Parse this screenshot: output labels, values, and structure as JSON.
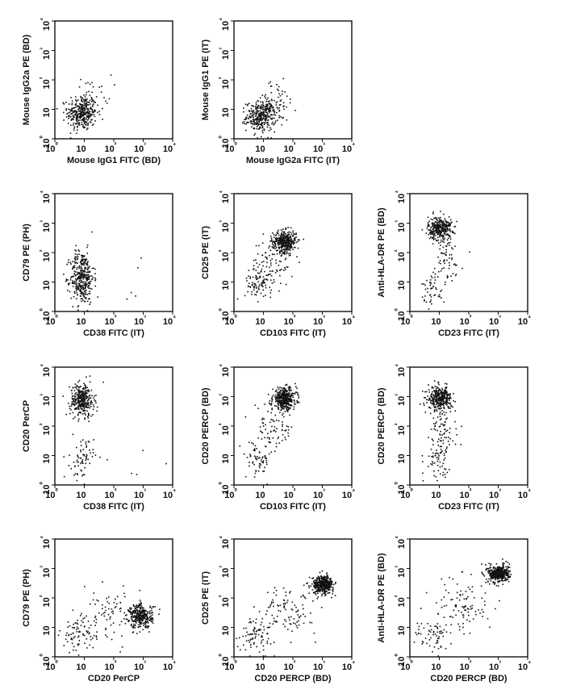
{
  "chart_data": [
    {
      "type": "scatter",
      "xlabel": "Mouse IgG1 FITC (BD)",
      "ylabel": "Mouse IgG2a PE (BD)",
      "x_scale": "log",
      "y_scale": "log",
      "xlim": [
        1,
        10000
      ],
      "ylim": [
        1,
        10000
      ],
      "x_ticks": [
        "10⁰",
        "10",
        "10²",
        "10³",
        "10⁴"
      ],
      "y_ticks": [
        "10⁰",
        "10",
        "10²",
        "10³",
        "10⁴"
      ],
      "clusters": [
        {
          "x_center": 8,
          "y_center": 8,
          "x_spread": 0.25,
          "y_spread": 0.3,
          "count": 340
        },
        {
          "x_center": 20,
          "y_center": 40,
          "x_spread": 0.3,
          "y_spread": 0.3,
          "count": 25
        }
      ]
    },
    {
      "type": "scatter",
      "xlabel": "Mouse IgG2a FITC (IT)",
      "ylabel": "Mouse IgG1 PE (IT)",
      "x_scale": "log",
      "y_scale": "log",
      "xlim": [
        1,
        10000
      ],
      "ylim": [
        1,
        10000
      ],
      "x_ticks": [
        "10⁰",
        "10",
        "10²",
        "10³",
        "10⁴"
      ],
      "y_ticks": [
        "10⁰",
        "10",
        "10²",
        "10³",
        "10⁴"
      ],
      "clusters": [
        {
          "x_center": 8,
          "y_center": 6,
          "x_spread": 0.25,
          "y_spread": 0.25,
          "count": 330
        },
        {
          "x_center": 25,
          "y_center": 20,
          "x_spread": 0.35,
          "y_spread": 0.35,
          "count": 60
        }
      ]
    },
    {
      "type": "scatter",
      "xlabel": "CD38 FITC (IT)",
      "ylabel": "CD79 PE (PH)",
      "x_scale": "log",
      "y_scale": "log",
      "xlim": [
        1,
        10000
      ],
      "ylim": [
        1,
        10000
      ],
      "x_ticks": [
        "10⁰",
        "10",
        "10²",
        "10³",
        "10⁴"
      ],
      "y_ticks": [
        "10⁰",
        "10",
        "10²",
        "10³",
        "10⁴"
      ],
      "clusters": [
        {
          "x_center": 8,
          "y_center": 15,
          "x_spread": 0.2,
          "y_spread": 0.45,
          "count": 360
        },
        {
          "x_center": 300,
          "y_center": 10,
          "x_spread": 0.6,
          "y_spread": 0.5,
          "count": 6
        }
      ]
    },
    {
      "type": "scatter",
      "xlabel": "CD103 FITC (IT)",
      "ylabel": "CD25 PE (IT)",
      "x_scale": "log",
      "y_scale": "log",
      "xlim": [
        1,
        10000
      ],
      "ylim": [
        1,
        10000
      ],
      "x_ticks": [
        "10⁰",
        "10",
        "10²",
        "10³",
        "10⁴"
      ],
      "y_ticks": [
        "10⁰",
        "10",
        "10²",
        "10³",
        "10⁴"
      ],
      "clusters": [
        {
          "x_center": 50,
          "y_center": 250,
          "x_spread": 0.2,
          "y_spread": 0.18,
          "count": 380
        },
        {
          "x_center": 7,
          "y_center": 10,
          "x_spread": 0.25,
          "y_spread": 0.3,
          "count": 90
        },
        {
          "x_center": 20,
          "y_center": 50,
          "x_spread": 0.35,
          "y_spread": 0.4,
          "count": 80
        }
      ]
    },
    {
      "type": "scatter",
      "xlabel": "CD23 FITC (IT)",
      "ylabel": "Anti-HLA-DR PE (BD)",
      "x_scale": "log",
      "y_scale": "log",
      "xlim": [
        1,
        10000
      ],
      "ylim": [
        1,
        10000
      ],
      "x_ticks": [
        "10⁰",
        "10",
        "10²",
        "10³",
        "10⁴"
      ],
      "y_ticks": [
        "10⁰",
        "10",
        "10²",
        "10³",
        "10⁴"
      ],
      "clusters": [
        {
          "x_center": 10,
          "y_center": 700,
          "x_spread": 0.2,
          "y_spread": 0.2,
          "count": 320
        },
        {
          "x_center": 6,
          "y_center": 7,
          "x_spread": 0.2,
          "y_spread": 0.3,
          "count": 50
        },
        {
          "x_center": 15,
          "y_center": 60,
          "x_spread": 0.3,
          "y_spread": 0.45,
          "count": 60
        }
      ]
    },
    {
      "type": "scatter",
      "xlabel": "CD38 FITC (IT)",
      "ylabel": "CD20 PerCP",
      "x_scale": "log",
      "y_scale": "log",
      "xlim": [
        1,
        10000
      ],
      "ylim": [
        1,
        10000
      ],
      "x_ticks": [
        "10⁰",
        "10",
        "10²",
        "10³",
        "10⁴"
      ],
      "y_ticks": [
        "10⁰",
        "10",
        "10²",
        "10³",
        "10⁴"
      ],
      "clusters": [
        {
          "x_center": 8,
          "y_center": 800,
          "x_spread": 0.2,
          "y_spread": 0.28,
          "count": 330
        },
        {
          "x_center": 8,
          "y_center": 8,
          "x_spread": 0.2,
          "y_spread": 0.35,
          "count": 70
        },
        {
          "x_center": 400,
          "y_center": 4,
          "x_spread": 0.7,
          "y_spread": 0.3,
          "count": 5
        }
      ]
    },
    {
      "type": "scatter",
      "xlabel": "CD103 FITC (IT)",
      "ylabel": "CD20 PERCP (BD)",
      "x_scale": "log",
      "y_scale": "log",
      "xlim": [
        1,
        10000
      ],
      "ylim": [
        1,
        10000
      ],
      "x_ticks": [
        "10⁰",
        "10",
        "10²",
        "10³",
        "10⁴"
      ],
      "y_ticks": [
        "10⁰",
        "10",
        "10²",
        "10³",
        "10⁴"
      ],
      "clusters": [
        {
          "x_center": 50,
          "y_center": 900,
          "x_spread": 0.2,
          "y_spread": 0.18,
          "count": 380
        },
        {
          "x_center": 6,
          "y_center": 7,
          "x_spread": 0.2,
          "y_spread": 0.3,
          "count": 60
        },
        {
          "x_center": 20,
          "y_center": 80,
          "x_spread": 0.35,
          "y_spread": 0.45,
          "count": 90
        }
      ]
    },
    {
      "type": "scatter",
      "xlabel": "CD23 FITC (IT)",
      "ylabel": "CD20 PERCP (BD)",
      "x_scale": "log",
      "y_scale": "log",
      "xlim": [
        1,
        10000
      ],
      "ylim": [
        1,
        10000
      ],
      "x_ticks": [
        "10⁰",
        "10",
        "10²",
        "10³",
        "10⁴"
      ],
      "y_ticks": [
        "10⁰",
        "10",
        "10²",
        "10³",
        "10⁴"
      ],
      "clusters": [
        {
          "x_center": 10,
          "y_center": 900,
          "x_spread": 0.2,
          "y_spread": 0.2,
          "count": 330
        },
        {
          "x_center": 8,
          "y_center": 8,
          "x_spread": 0.2,
          "y_spread": 0.3,
          "count": 60
        },
        {
          "x_center": 12,
          "y_center": 80,
          "x_spread": 0.25,
          "y_spread": 0.45,
          "count": 70
        }
      ]
    },
    {
      "type": "scatter",
      "xlabel": "CD20 PerCP",
      "ylabel": "CD79 PE (PH)",
      "x_scale": "log",
      "y_scale": "log",
      "xlim": [
        1,
        10000
      ],
      "ylim": [
        1,
        10000
      ],
      "x_ticks": [
        "10⁰",
        "10",
        "10²",
        "10³",
        "10⁴"
      ],
      "y_ticks": [
        "10⁰",
        "10",
        "10²",
        "10³",
        "10⁴"
      ],
      "clusters": [
        {
          "x_center": 800,
          "y_center": 25,
          "x_spread": 0.2,
          "y_spread": 0.2,
          "count": 320
        },
        {
          "x_center": 6,
          "y_center": 6,
          "x_spread": 0.3,
          "y_spread": 0.3,
          "count": 80
        },
        {
          "x_center": 80,
          "y_center": 30,
          "x_spread": 0.5,
          "y_spread": 0.45,
          "count": 80
        }
      ]
    },
    {
      "type": "scatter",
      "xlabel": "CD20 PERCP (BD)",
      "ylabel": "CD25 PE (IT)",
      "x_scale": "log",
      "y_scale": "log",
      "xlim": [
        1,
        10000
      ],
      "ylim": [
        1,
        10000
      ],
      "x_ticks": [
        "10⁰",
        "10",
        "10²",
        "10³",
        "10⁴"
      ],
      "y_ticks": [
        "10⁰",
        "10",
        "10²",
        "10³",
        "10⁴"
      ],
      "clusters": [
        {
          "x_center": 1000,
          "y_center": 300,
          "x_spread": 0.18,
          "y_spread": 0.15,
          "count": 380
        },
        {
          "x_center": 6,
          "y_center": 6,
          "x_spread": 0.3,
          "y_spread": 0.3,
          "count": 80
        },
        {
          "x_center": 70,
          "y_center": 40,
          "x_spread": 0.45,
          "y_spread": 0.4,
          "count": 100
        }
      ]
    },
    {
      "type": "scatter",
      "xlabel": "CD20 PERCP (BD)",
      "ylabel": "Anti-HLA-DR PE (BD)",
      "x_scale": "log",
      "y_scale": "log",
      "xlim": [
        1,
        10000
      ],
      "ylim": [
        1,
        10000
      ],
      "x_ticks": [
        "10⁰",
        "10",
        "10²",
        "10³",
        "10⁴"
      ],
      "y_ticks": [
        "10⁰",
        "10",
        "10²",
        "10³",
        "10⁴"
      ],
      "clusters": [
        {
          "x_center": 1000,
          "y_center": 700,
          "x_spread": 0.18,
          "y_spread": 0.15,
          "count": 400
        },
        {
          "x_center": 6,
          "y_center": 5,
          "x_spread": 0.3,
          "y_spread": 0.3,
          "count": 60
        },
        {
          "x_center": 60,
          "y_center": 60,
          "x_spread": 0.5,
          "y_spread": 0.5,
          "count": 100
        }
      ]
    }
  ]
}
